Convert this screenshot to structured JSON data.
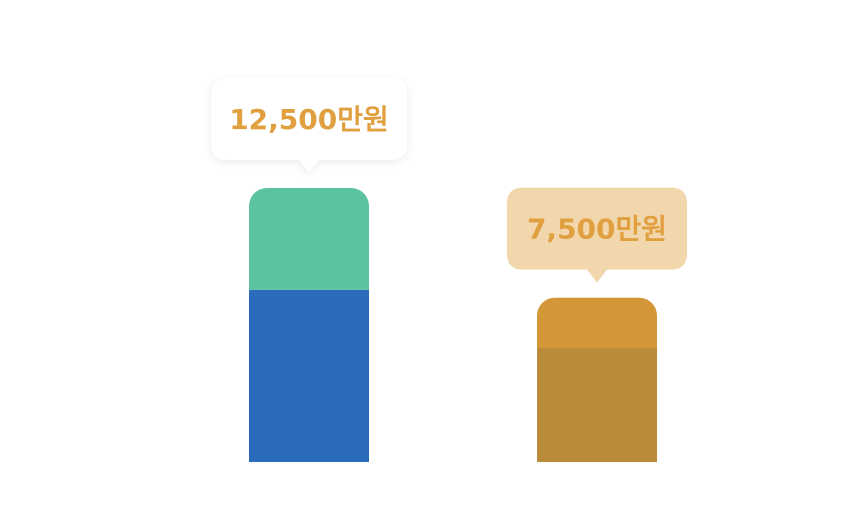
{
  "chart_data": {
    "type": "bar",
    "stacked": true,
    "categories": [
      null,
      null
    ],
    "series": [
      {
        "colors": [
          "#2a6bbb",
          "#bb8b3c"
        ],
        "values": [
          7850,
          5200
        ]
      },
      {
        "colors": [
          "#5bc49e",
          "#d49737"
        ],
        "values": [
          4650,
          2300
        ]
      }
    ],
    "totals": [
      12500,
      7500
    ],
    "total_labels": [
      "12,500만원",
      "7,500만원"
    ],
    "bubble_colors": [
      "#ffffff",
      "#f2d7ac"
    ],
    "label_color": "#e0a03f",
    "ylim": [
      0,
      12500
    ]
  }
}
